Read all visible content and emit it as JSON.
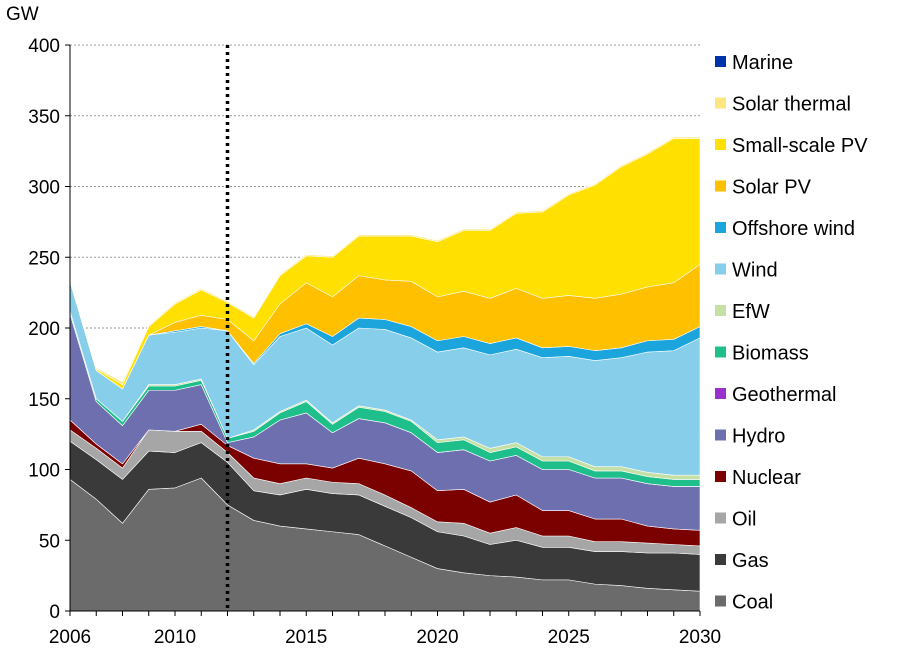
{
  "chart_data": {
    "type": "area",
    "stacked": true,
    "ylabel": "GW",
    "ylim": [
      0,
      400
    ],
    "yticks": [
      0,
      50,
      100,
      150,
      200,
      250,
      300,
      350,
      400
    ],
    "xlim": [
      2006,
      2030
    ],
    "xticks": [
      2006,
      2010,
      2015,
      2020,
      2025,
      2030
    ],
    "grid": "horizontal dotted",
    "legend": "right",
    "vline": {
      "x": 2012,
      "style": "dotted"
    },
    "x": [
      2006,
      2007,
      2008,
      2009,
      2010,
      2011,
      2012,
      2013,
      2014,
      2015,
      2016,
      2017,
      2018,
      2019,
      2020,
      2021,
      2022,
      2023,
      2024,
      2025,
      2026,
      2027,
      2028,
      2029,
      2030
    ],
    "series": [
      {
        "name": "Coal",
        "color": "#6b6b6b",
        "values": [
          93,
          79,
          62,
          86,
          87,
          94,
          75,
          64,
          60,
          58,
          56,
          54,
          46,
          38,
          30,
          27,
          25,
          24,
          22,
          22,
          19,
          18,
          16,
          15,
          14
        ]
      },
      {
        "name": "Gas",
        "color": "#3a3a3a",
        "values": [
          27,
          28,
          31,
          27,
          25,
          25,
          30,
          21,
          22,
          28,
          27,
          28,
          28,
          28,
          26,
          26,
          22,
          26,
          23,
          23,
          23,
          24,
          25,
          26,
          26
        ]
      },
      {
        "name": "Oil",
        "color": "#a6a6a6",
        "values": [
          8,
          8,
          8,
          15,
          15,
          8,
          7,
          9,
          8,
          8,
          8,
          8,
          8,
          7,
          7,
          9,
          8,
          9,
          8,
          8,
          7,
          7,
          7,
          6,
          6
        ]
      },
      {
        "name": "Nuclear",
        "color": "#7b0000",
        "values": [
          7,
          3,
          3,
          0,
          0,
          5,
          5,
          14,
          14,
          10,
          10,
          18,
          22,
          26,
          22,
          24,
          22,
          23,
          18,
          18,
          16,
          16,
          12,
          11,
          11
        ]
      },
      {
        "name": "Hydro",
        "color": "#6e6fae",
        "values": [
          75,
          30,
          27,
          28,
          29,
          28,
          2,
          15,
          31,
          36,
          25,
          28,
          29,
          27,
          27,
          28,
          29,
          28,
          29,
          29,
          29,
          29,
          30,
          30,
          31
        ]
      },
      {
        "name": "Geothermal",
        "color": "#9932cc",
        "values": [
          0,
          0,
          0,
          0,
          0,
          0,
          0,
          0,
          0,
          0,
          0,
          0,
          0,
          0,
          0,
          0,
          0,
          0,
          0,
          0,
          0,
          0,
          0,
          0,
          0
        ]
      },
      {
        "name": "Biomass",
        "color": "#1fbf8b",
        "values": [
          2,
          2,
          3,
          3,
          3,
          3,
          3,
          4,
          5,
          8,
          6,
          8,
          8,
          8,
          7,
          7,
          6,
          6,
          6,
          6,
          5,
          5,
          5,
          5,
          5
        ]
      },
      {
        "name": "EfW",
        "color": "#c5e0a5",
        "values": [
          0,
          0,
          0,
          1,
          1,
          1,
          0,
          1,
          1,
          1,
          1,
          1,
          1,
          1,
          2,
          2,
          3,
          3,
          3,
          3,
          3,
          3,
          3,
          3,
          3
        ]
      },
      {
        "name": "Wind",
        "color": "#87ceeb",
        "values": [
          21,
          20,
          23,
          35,
          37,
          36,
          76,
          46,
          53,
          51,
          55,
          55,
          57,
          58,
          62,
          63,
          66,
          66,
          70,
          71,
          75,
          77,
          85,
          88,
          97
        ]
      },
      {
        "name": "Offshore wind",
        "color": "#1ba5dc",
        "values": [
          0,
          0,
          0,
          0,
          1,
          1,
          0,
          1,
          2,
          3,
          6,
          7,
          7,
          8,
          8,
          8,
          8,
          8,
          7,
          7,
          7,
          7,
          8,
          8,
          8
        ]
      },
      {
        "name": "Solar PV",
        "color": "#ffc000",
        "values": [
          0,
          0,
          0,
          0,
          6,
          8,
          8,
          16,
          21,
          29,
          28,
          30,
          28,
          32,
          31,
          32,
          32,
          35,
          35,
          36,
          37,
          38,
          38,
          40,
          44
        ]
      },
      {
        "name": "Small-scale PV",
        "color": "#ffe000",
        "values": [
          0,
          1,
          3,
          6,
          13,
          18,
          12,
          16,
          20,
          19,
          28,
          28,
          31,
          32,
          39,
          43,
          48,
          53,
          61,
          71,
          80,
          90,
          94,
          102,
          89
        ]
      },
      {
        "name": "Solar thermal",
        "color": "#ffe680",
        "values": [
          0,
          1,
          2,
          1,
          1,
          1,
          1,
          1,
          1,
          1,
          1,
          1,
          1,
          1,
          1,
          1,
          1,
          1,
          1,
          1,
          1,
          1,
          1,
          1,
          1
        ]
      },
      {
        "name": "Marine",
        "color": "#0033aa",
        "values": [
          0,
          0,
          0,
          0,
          0,
          0,
          0,
          0,
          0,
          0,
          0,
          0,
          0,
          0,
          0,
          0,
          0,
          0,
          0,
          0,
          0,
          0,
          0,
          0,
          0
        ]
      }
    ],
    "legend_order": [
      "Marine",
      "Solar thermal",
      "Small-scale PV",
      "Solar PV",
      "Offshore wind",
      "Wind",
      "EfW",
      "Biomass",
      "Geothermal",
      "Hydro",
      "Nuclear",
      "Oil",
      "Gas",
      "Coal"
    ]
  }
}
